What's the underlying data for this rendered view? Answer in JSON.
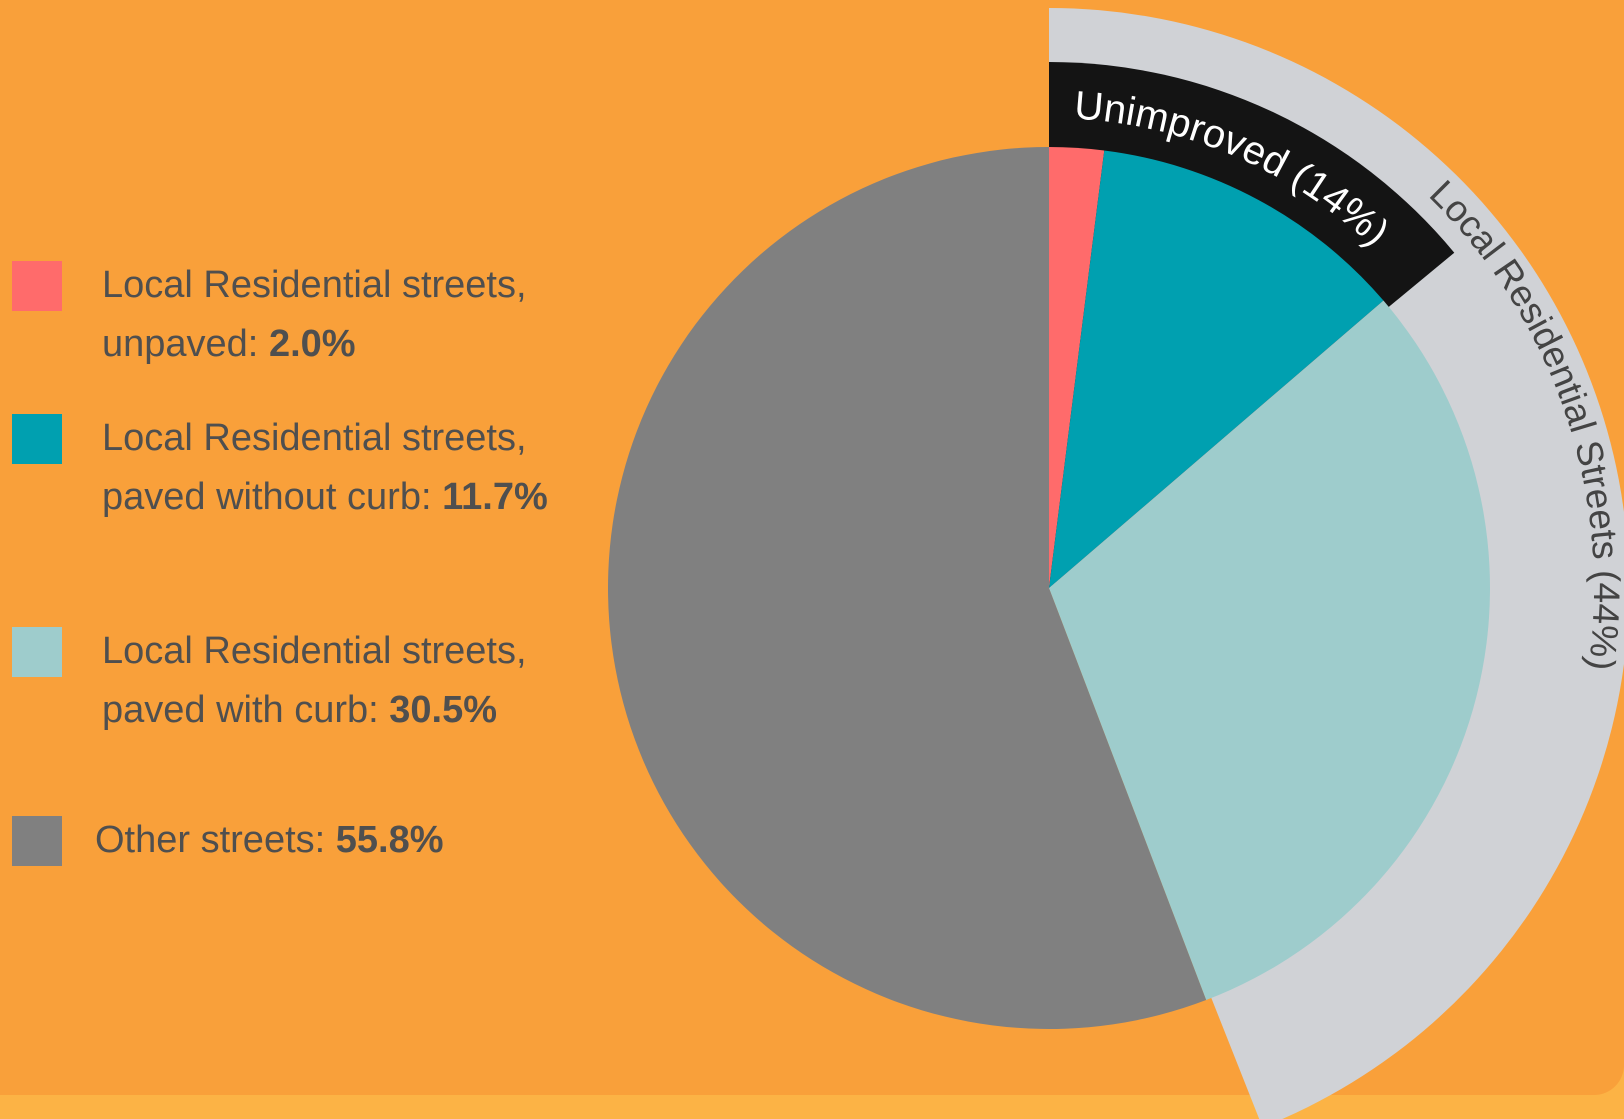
{
  "chart_data": {
    "type": "pie",
    "categories": [
      "Local Residential streets, unpaved:",
      "Local Residential streets, paved without curb:",
      "Local Residential streets, paved with curb:",
      "Other streets:"
    ],
    "values": [
      2.0,
      11.7,
      30.5,
      55.8
    ],
    "value_labels": [
      "2.0%",
      "11.7%",
      "30.5%",
      "55.8%"
    ],
    "colors": [
      "#ff6b6b",
      "#00a0b0",
      "#9ecccc",
      "#808080"
    ],
    "groups": [
      {
        "label": "Local Residential Streets (44%)",
        "value": 44,
        "color": "#d0d2d6"
      },
      {
        "label": "Unimproved (14%)",
        "value": 14,
        "color": "#141414"
      }
    ]
  }
}
